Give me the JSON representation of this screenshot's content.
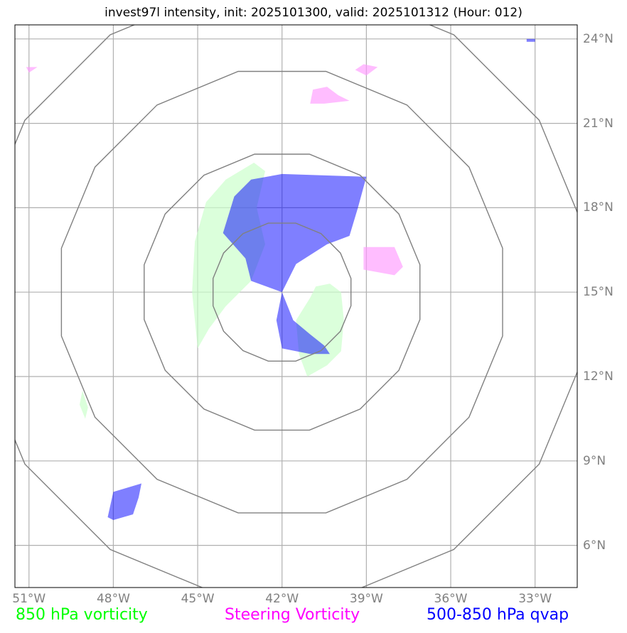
{
  "title": "invest97l intensity, init: 2025101300, valid: 2025101312 (Hour: 012)",
  "map": {
    "lon_range": [
      -51.5,
      -31.5
    ],
    "lat_range": [
      4.5,
      24.5
    ],
    "center": {
      "lon": -42,
      "lat": 15
    },
    "range_rings_deg": [
      2.5,
      5,
      8,
      11
    ]
  },
  "lon_ticks": [
    {
      "value": -51,
      "label": "51°W"
    },
    {
      "value": -48,
      "label": "48°W"
    },
    {
      "value": -45,
      "label": "45°W"
    },
    {
      "value": -42,
      "label": "42°W"
    },
    {
      "value": -39,
      "label": "39°W"
    },
    {
      "value": -36,
      "label": "36°W"
    },
    {
      "value": -33,
      "label": "33°W"
    }
  ],
  "lat_ticks": [
    {
      "value": 24,
      "label": "24°N"
    },
    {
      "value": 21,
      "label": "21°N"
    },
    {
      "value": 18,
      "label": "18°N"
    },
    {
      "value": 15,
      "label": "15°N"
    },
    {
      "value": 12,
      "label": "12°N"
    },
    {
      "value": 9,
      "label": "9°N"
    },
    {
      "value": 6,
      "label": "6°N"
    }
  ],
  "legend": [
    {
      "label": "850 hPa vorticity",
      "color": "#00ff00"
    },
    {
      "label": "Steering Vorticity",
      "color": "#ff00ff"
    },
    {
      "label": "500-850 hPa qvap",
      "color": "#0000ff"
    }
  ],
  "colors": {
    "vort850_fill": "#ccffcc",
    "steering_fill": "#ff99ff",
    "qvap_fill": "#0000ff",
    "grid": "#b0b0b0",
    "ring": "#808080"
  },
  "regions": {
    "vort850": [
      [
        [
          -45.2,
          15.0
        ],
        [
          -45.1,
          16.8
        ],
        [
          -44.7,
          18.2
        ],
        [
          -44.0,
          19.0
        ],
        [
          -43.0,
          19.6
        ],
        [
          -42.6,
          19.3
        ],
        [
          -42.9,
          18.0
        ],
        [
          -42.6,
          16.7
        ],
        [
          -43.1,
          15.4
        ],
        [
          -44.0,
          14.5
        ],
        [
          -44.6,
          13.7
        ],
        [
          -45.0,
          13.0
        ]
      ],
      [
        [
          -40.8,
          15.2
        ],
        [
          -40.3,
          15.3
        ],
        [
          -39.9,
          15.0
        ],
        [
          -39.8,
          14.0
        ],
        [
          -39.9,
          12.9
        ],
        [
          -40.4,
          12.4
        ],
        [
          -41.1,
          12.0
        ],
        [
          -41.4,
          12.8
        ],
        [
          -41.5,
          14.0
        ],
        [
          -41.0,
          14.8
        ]
      ],
      [
        [
          -49.1,
          11.5
        ],
        [
          -48.9,
          10.9
        ],
        [
          -49.0,
          10.5
        ],
        [
          -49.2,
          11.0
        ]
      ]
    ],
    "steering": [
      [
        [
          -38.0,
          16.6
        ],
        [
          -37.7,
          15.9
        ],
        [
          -38.0,
          15.6
        ],
        [
          -39.1,
          15.8
        ],
        [
          -39.1,
          16.6
        ]
      ],
      [
        [
          -40.9,
          22.2
        ],
        [
          -40.4,
          22.3
        ],
        [
          -40.0,
          22.0
        ],
        [
          -39.6,
          21.8
        ],
        [
          -40.5,
          21.7
        ],
        [
          -41.0,
          21.7
        ]
      ],
      [
        [
          -39.1,
          23.1
        ],
        [
          -38.6,
          23.0
        ],
        [
          -39.0,
          22.7
        ],
        [
          -39.4,
          22.9
        ]
      ],
      [
        [
          -51.1,
          23.0
        ],
        [
          -50.7,
          23.0
        ],
        [
          -51.0,
          22.8
        ]
      ]
    ],
    "qvap": [
      [
        [
          -42.0,
          19.2
        ],
        [
          -43.1,
          19.0
        ],
        [
          -43.7,
          18.4
        ],
        [
          -44.1,
          17.1
        ],
        [
          -43.3,
          16.2
        ],
        [
          -43.1,
          15.4
        ],
        [
          -42.0,
          15.0
        ],
        [
          -42.2,
          14.0
        ],
        [
          -42.0,
          13.0
        ],
        [
          -41.0,
          12.8
        ],
        [
          -40.3,
          12.8
        ],
        [
          -40.5,
          13.1
        ],
        [
          -41.0,
          13.5
        ],
        [
          -41.6,
          14.0
        ],
        [
          -42.0,
          15.0
        ],
        [
          -41.5,
          16.0
        ],
        [
          -40.4,
          16.7
        ],
        [
          -39.6,
          17.0
        ],
        [
          -39.3,
          18.0
        ],
        [
          -39.0,
          19.1
        ]
      ],
      [
        [
          -48.0,
          7.9
        ],
        [
          -47.0,
          8.2
        ],
        [
          -47.1,
          7.7
        ],
        [
          -47.3,
          7.1
        ],
        [
          -48.0,
          6.9
        ],
        [
          -48.2,
          7.0
        ]
      ],
      [
        [
          -33.3,
          24.0
        ],
        [
          -33.0,
          24.0
        ],
        [
          -33.0,
          23.9
        ],
        [
          -33.3,
          23.9
        ]
      ]
    ]
  }
}
